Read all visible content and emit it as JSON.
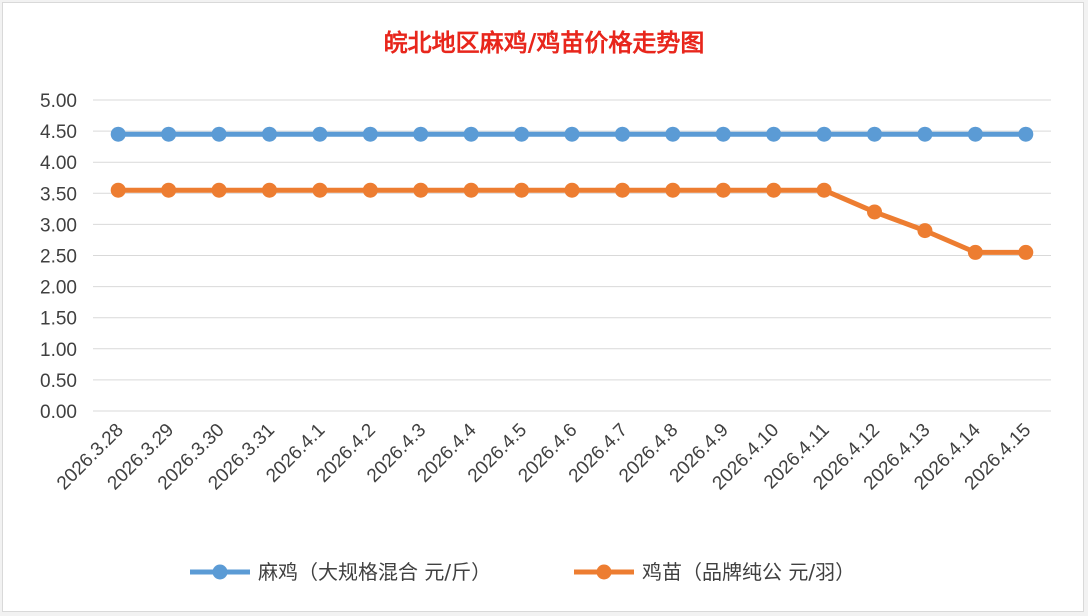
{
  "chart_data": {
    "type": "line",
    "title": "皖北地区麻鸡/鸡苗价格走势图",
    "xlabel": "",
    "ylabel": "",
    "ylim": [
      0,
      5
    ],
    "ytick_step": 0.5,
    "ytick_labels": [
      "0.00",
      "0.50",
      "1.00",
      "1.50",
      "2.00",
      "2.50",
      "3.00",
      "3.50",
      "4.00",
      "4.50",
      "5.00"
    ],
    "grid": true,
    "legend_position": "bottom",
    "categories": [
      "2026.3.28",
      "2026.3.29",
      "2026.3.30",
      "2026.3.31",
      "2026.4.1",
      "2026.4.2",
      "2026.4.3",
      "2026.4.4",
      "2026.4.5",
      "2026.4.6",
      "2026.4.7",
      "2026.4.8",
      "2026.4.9",
      "2026.4.10",
      "2026.4.11",
      "2026.4.12",
      "2026.4.13",
      "2026.4.14",
      "2026.4.15"
    ],
    "series": [
      {
        "name": "麻鸡（大规格混合 元/斤）",
        "color": "#5b9bd5",
        "values": [
          4.45,
          4.45,
          4.45,
          4.45,
          4.45,
          4.45,
          4.45,
          4.45,
          4.45,
          4.45,
          4.45,
          4.45,
          4.45,
          4.45,
          4.45,
          4.45,
          4.45,
          4.45,
          4.45
        ]
      },
      {
        "name": "鸡苗（品牌纯公 元/羽）",
        "color": "#ed7d31",
        "values": [
          3.55,
          3.55,
          3.55,
          3.55,
          3.55,
          3.55,
          3.55,
          3.55,
          3.55,
          3.55,
          3.55,
          3.55,
          3.55,
          3.55,
          3.55,
          3.2,
          2.9,
          2.55,
          2.55
        ]
      }
    ]
  },
  "colors": {
    "title": "#e8261c",
    "grid": "#d9d9d9",
    "text": "#404040"
  }
}
